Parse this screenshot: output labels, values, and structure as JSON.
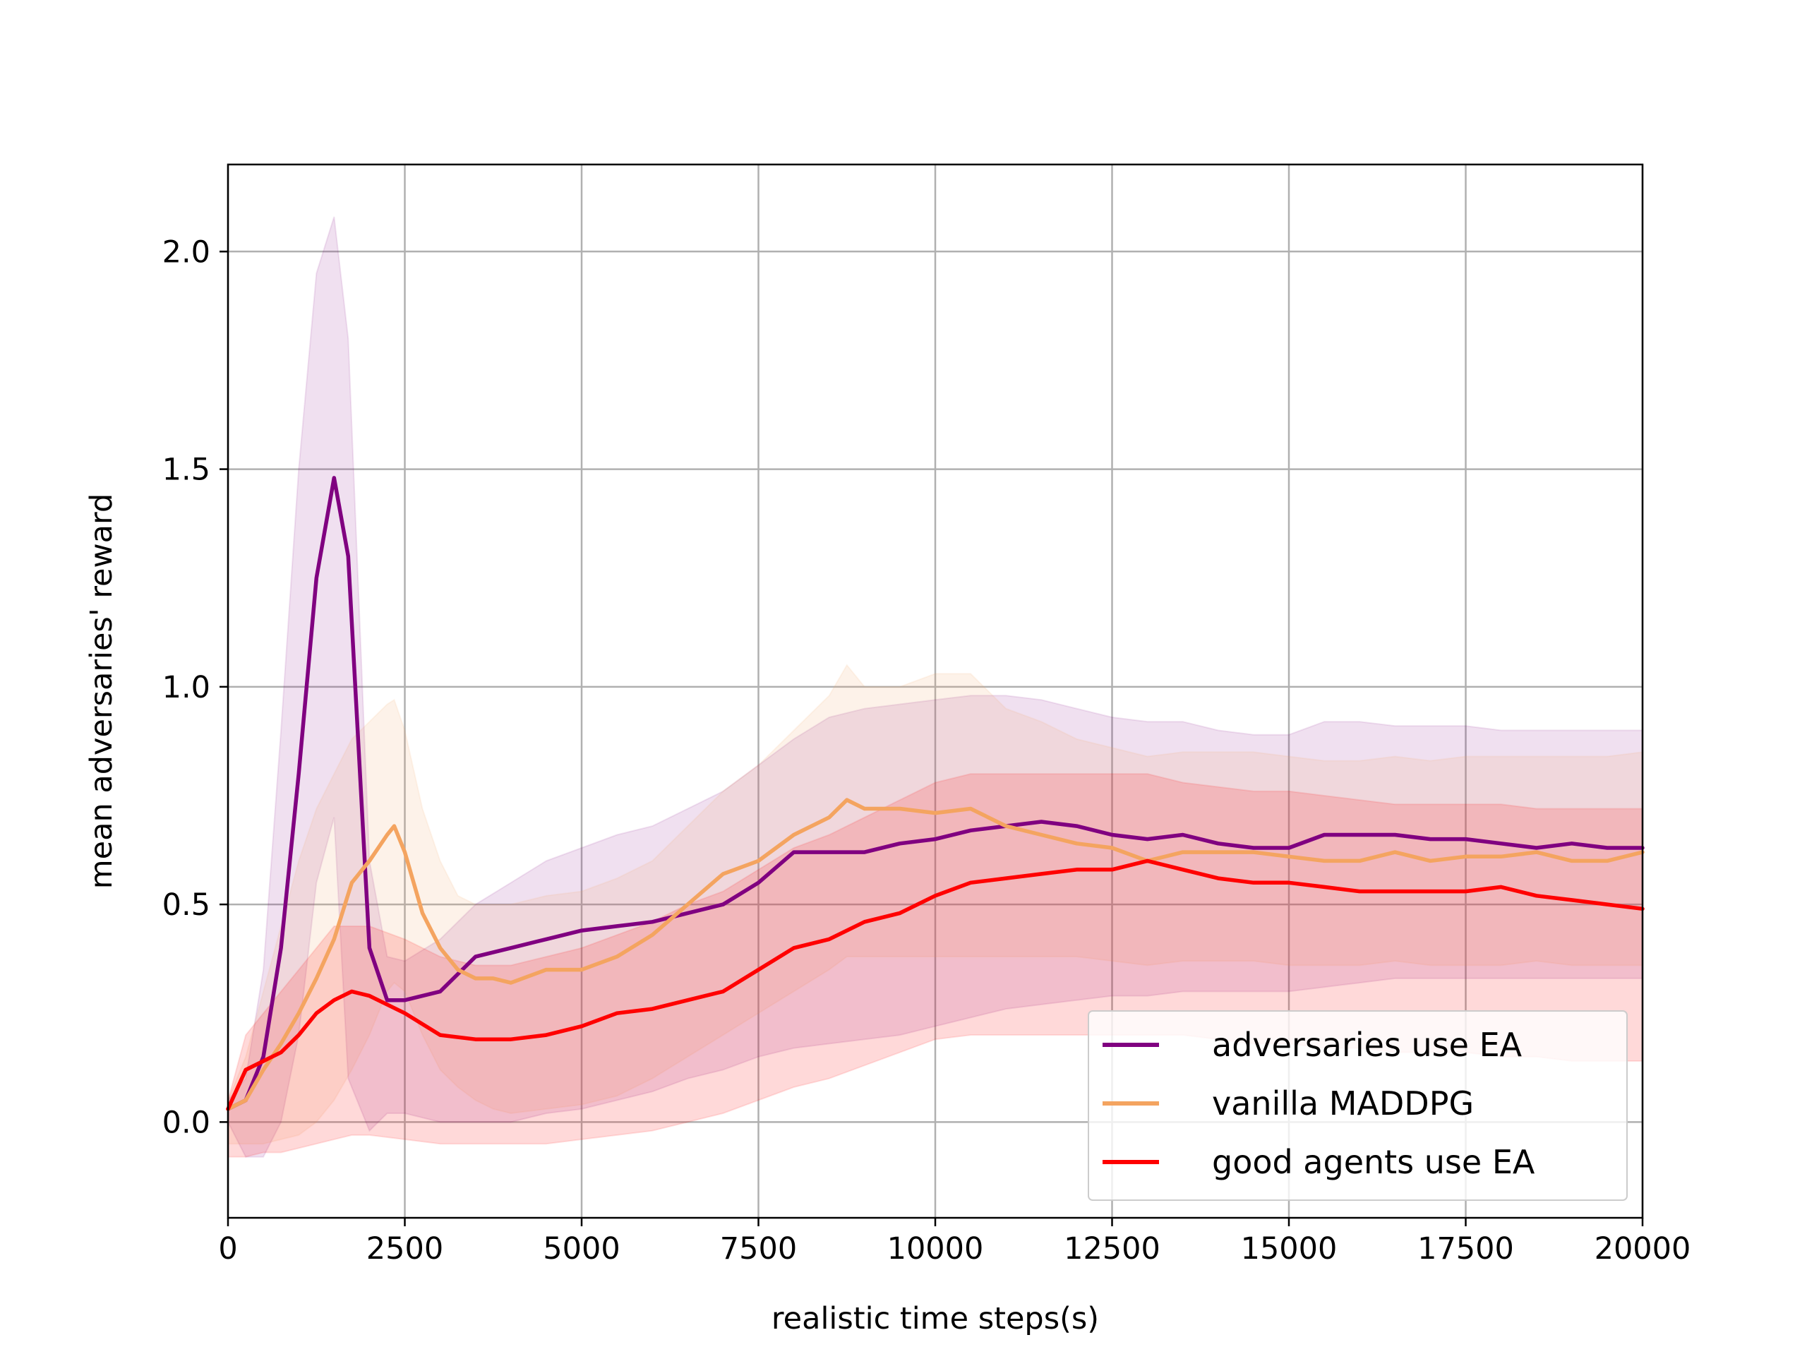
{
  "chart_data": {
    "type": "line",
    "title": "",
    "xlabel": "realistic time steps(s)",
    "ylabel": "mean adversaries' reward",
    "xlim": [
      0,
      20000
    ],
    "ylim": [
      -0.22,
      2.2
    ],
    "xticks": [
      0,
      2500,
      5000,
      7500,
      10000,
      12500,
      15000,
      17500,
      20000
    ],
    "xtick_labels": [
      "0",
      "2500",
      "5000",
      "7500",
      "10000",
      "12500",
      "15000",
      "17500",
      "20000"
    ],
    "yticks": [
      0.0,
      0.5,
      1.0,
      1.5,
      2.0
    ],
    "ytick_labels": [
      "0.0",
      "0.5",
      "1.0",
      "1.5",
      "2.0"
    ],
    "grid": true,
    "legend_position": "lower-right",
    "series": [
      {
        "name": "adversaries use EA",
        "color": "#800080",
        "band_opacity": 0.12,
        "x": [
          0,
          250,
          500,
          750,
          1000,
          1250,
          1500,
          1700,
          2000,
          2250,
          2500,
          3000,
          3500,
          4000,
          4500,
          5000,
          5500,
          6000,
          6500,
          7000,
          7500,
          8000,
          8500,
          9000,
          9500,
          10000,
          10500,
          11000,
          11500,
          12000,
          12500,
          13000,
          13500,
          14000,
          14500,
          15000,
          15500,
          16000,
          16500,
          17000,
          17500,
          18000,
          18500,
          19000,
          19500,
          20000
        ],
        "y": [
          0.03,
          0.05,
          0.15,
          0.4,
          0.8,
          1.25,
          1.48,
          1.3,
          0.4,
          0.28,
          0.28,
          0.3,
          0.38,
          0.4,
          0.42,
          0.44,
          0.45,
          0.46,
          0.48,
          0.5,
          0.55,
          0.62,
          0.62,
          0.62,
          0.64,
          0.65,
          0.67,
          0.68,
          0.69,
          0.68,
          0.66,
          0.65,
          0.66,
          0.64,
          0.63,
          0.63,
          0.66,
          0.66,
          0.66,
          0.65,
          0.65,
          0.64,
          0.63,
          0.64,
          0.63,
          0.63
        ],
        "upper": [
          0.05,
          0.1,
          0.35,
          0.9,
          1.5,
          1.95,
          2.08,
          1.8,
          0.6,
          0.38,
          0.37,
          0.42,
          0.5,
          0.55,
          0.6,
          0.63,
          0.66,
          0.68,
          0.72,
          0.76,
          0.82,
          0.88,
          0.93,
          0.95,
          0.96,
          0.97,
          0.98,
          0.98,
          0.97,
          0.95,
          0.93,
          0.92,
          0.92,
          0.9,
          0.89,
          0.89,
          0.92,
          0.92,
          0.91,
          0.91,
          0.91,
          0.9,
          0.9,
          0.9,
          0.9,
          0.9
        ],
        "lower": [
          0.0,
          -0.08,
          -0.08,
          0.0,
          0.2,
          0.55,
          0.7,
          0.1,
          -0.02,
          0.02,
          0.02,
          0.0,
          0.0,
          0.0,
          0.02,
          0.03,
          0.05,
          0.07,
          0.1,
          0.12,
          0.15,
          0.17,
          0.18,
          0.19,
          0.2,
          0.22,
          0.24,
          0.26,
          0.27,
          0.28,
          0.29,
          0.29,
          0.3,
          0.3,
          0.3,
          0.3,
          0.31,
          0.32,
          0.33,
          0.33,
          0.33,
          0.33,
          0.33,
          0.33,
          0.33,
          0.33
        ]
      },
      {
        "name": "vanilla MADDPG",
        "color": "#F4A460",
        "band_opacity": 0.14,
        "x": [
          0,
          250,
          500,
          750,
          1000,
          1250,
          1500,
          1750,
          2000,
          2250,
          2350,
          2500,
          2750,
          3000,
          3250,
          3500,
          3750,
          4000,
          4500,
          5000,
          5500,
          6000,
          6500,
          7000,
          7500,
          8000,
          8500,
          8750,
          9000,
          9500,
          10000,
          10500,
          11000,
          11500,
          12000,
          12500,
          13000,
          13500,
          14000,
          14500,
          15000,
          15500,
          16000,
          16500,
          17000,
          17500,
          18000,
          18500,
          19000,
          19500,
          20000
        ],
        "y": [
          0.03,
          0.05,
          0.12,
          0.18,
          0.25,
          0.33,
          0.42,
          0.55,
          0.6,
          0.66,
          0.68,
          0.62,
          0.48,
          0.4,
          0.35,
          0.33,
          0.33,
          0.32,
          0.35,
          0.35,
          0.38,
          0.43,
          0.5,
          0.57,
          0.6,
          0.66,
          0.7,
          0.74,
          0.72,
          0.72,
          0.71,
          0.72,
          0.68,
          0.66,
          0.64,
          0.63,
          0.6,
          0.62,
          0.62,
          0.62,
          0.61,
          0.6,
          0.6,
          0.62,
          0.6,
          0.61,
          0.61,
          0.62,
          0.6,
          0.6,
          0.62
        ],
        "upper": [
          0.05,
          0.15,
          0.3,
          0.45,
          0.6,
          0.72,
          0.8,
          0.88,
          0.92,
          0.96,
          0.97,
          0.9,
          0.72,
          0.6,
          0.52,
          0.5,
          0.5,
          0.5,
          0.52,
          0.53,
          0.56,
          0.6,
          0.68,
          0.76,
          0.82,
          0.9,
          0.98,
          1.05,
          1.0,
          1.0,
          1.03,
          1.03,
          0.95,
          0.92,
          0.88,
          0.86,
          0.84,
          0.85,
          0.85,
          0.85,
          0.84,
          0.83,
          0.83,
          0.84,
          0.83,
          0.84,
          0.84,
          0.84,
          0.84,
          0.84,
          0.85
        ],
        "lower": [
          -0.05,
          -0.05,
          -0.05,
          -0.04,
          -0.03,
          0.0,
          0.05,
          0.12,
          0.2,
          0.3,
          0.32,
          0.3,
          0.2,
          0.12,
          0.08,
          0.05,
          0.03,
          0.02,
          0.03,
          0.04,
          0.06,
          0.1,
          0.15,
          0.2,
          0.25,
          0.3,
          0.35,
          0.38,
          0.38,
          0.38,
          0.38,
          0.38,
          0.38,
          0.38,
          0.38,
          0.37,
          0.36,
          0.37,
          0.37,
          0.37,
          0.36,
          0.36,
          0.36,
          0.37,
          0.36,
          0.36,
          0.36,
          0.37,
          0.36,
          0.36,
          0.36
        ]
      },
      {
        "name": "good agents use EA",
        "color": "#FF0000",
        "band_opacity": 0.15,
        "x": [
          0,
          250,
          500,
          750,
          1000,
          1250,
          1500,
          1750,
          2000,
          2500,
          3000,
          3500,
          4000,
          4500,
          5000,
          5500,
          6000,
          6500,
          7000,
          7500,
          8000,
          8500,
          9000,
          9500,
          10000,
          10500,
          11000,
          11500,
          12000,
          12500,
          13000,
          13500,
          14000,
          14500,
          15000,
          15500,
          16000,
          16500,
          17000,
          17500,
          18000,
          18500,
          19000,
          19500,
          20000
        ],
        "y": [
          0.03,
          0.12,
          0.14,
          0.16,
          0.2,
          0.25,
          0.28,
          0.3,
          0.29,
          0.25,
          0.2,
          0.19,
          0.19,
          0.2,
          0.22,
          0.25,
          0.26,
          0.28,
          0.3,
          0.35,
          0.4,
          0.42,
          0.46,
          0.48,
          0.52,
          0.55,
          0.56,
          0.57,
          0.58,
          0.58,
          0.6,
          0.58,
          0.56,
          0.55,
          0.55,
          0.54,
          0.53,
          0.53,
          0.53,
          0.53,
          0.54,
          0.52,
          0.51,
          0.5,
          0.49
        ],
        "upper": [
          0.05,
          0.2,
          0.25,
          0.3,
          0.35,
          0.4,
          0.45,
          0.45,
          0.45,
          0.42,
          0.38,
          0.36,
          0.36,
          0.38,
          0.4,
          0.43,
          0.46,
          0.5,
          0.53,
          0.58,
          0.63,
          0.66,
          0.7,
          0.74,
          0.78,
          0.8,
          0.8,
          0.8,
          0.8,
          0.8,
          0.8,
          0.78,
          0.77,
          0.76,
          0.76,
          0.75,
          0.74,
          0.73,
          0.73,
          0.73,
          0.73,
          0.72,
          0.72,
          0.72,
          0.72
        ],
        "lower": [
          -0.08,
          -0.08,
          -0.07,
          -0.07,
          -0.06,
          -0.05,
          -0.04,
          -0.03,
          -0.03,
          -0.04,
          -0.05,
          -0.05,
          -0.05,
          -0.05,
          -0.04,
          -0.03,
          -0.02,
          0.0,
          0.02,
          0.05,
          0.08,
          0.1,
          0.13,
          0.16,
          0.19,
          0.2,
          0.2,
          0.2,
          0.2,
          0.2,
          0.2,
          0.2,
          0.19,
          0.18,
          0.18,
          0.17,
          0.17,
          0.16,
          0.16,
          0.16,
          0.15,
          0.15,
          0.14,
          0.14,
          0.14
        ]
      }
    ]
  }
}
